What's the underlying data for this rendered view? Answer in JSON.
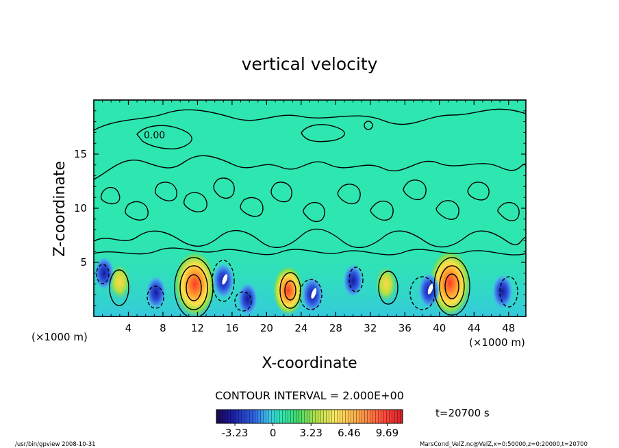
{
  "chart_data": {
    "type": "heatmap",
    "title": "vertical velocity",
    "xlabel": "X-coordinate",
    "ylabel": "Z-coordinate",
    "x_unit": "(×1000 m)",
    "y_unit": "(×1000 m)",
    "xlim": [
      0,
      50
    ],
    "ylim": [
      0,
      20
    ],
    "x_ticks": [
      4,
      8,
      12,
      16,
      20,
      24,
      28,
      32,
      36,
      40,
      44,
      48
    ],
    "y_ticks": [
      5,
      10,
      15
    ],
    "contour_interval_label": "CONTOUR INTERVAL = 2.000E+00",
    "contour_label": "0.00",
    "time_label": "t=20700 s",
    "colorbar": {
      "range": [
        -4.8,
        11
      ],
      "ticks": [
        -3.23,
        0,
        3.23,
        6.46,
        9.69
      ],
      "tick_labels": [
        "-3.23",
        "0",
        "3.23",
        "6.46",
        "9.69"
      ]
    },
    "features": [
      {
        "x": 3.0,
        "z": 3.2,
        "value": 3.5
      },
      {
        "x": 11.7,
        "z": 3.0,
        "value": 10.0
      },
      {
        "x": 22.5,
        "z": 2.4,
        "value": 6.5
      },
      {
        "x": 33.8,
        "z": 3.0,
        "value": 3.5
      },
      {
        "x": 41.2,
        "z": 3.1,
        "value": 10.0
      },
      {
        "x": 1.2,
        "z": 4.0,
        "value": -3.0
      },
      {
        "x": 7.2,
        "z": 2.2,
        "value": -3.0
      },
      {
        "x": 15.0,
        "z": 3.3,
        "value": -3.5
      },
      {
        "x": 17.8,
        "z": 1.6,
        "value": -3.0
      },
      {
        "x": 25.3,
        "z": 2.0,
        "value": -3.5
      },
      {
        "x": 30.0,
        "z": 3.3,
        "value": -3.0
      },
      {
        "x": 38.8,
        "z": 2.4,
        "value": -3.5
      },
      {
        "x": 47.3,
        "z": 2.3,
        "value": -3.3
      }
    ]
  },
  "footer": {
    "left": "/usr/bin/gpview   2008-10-31",
    "right": "MarsCond_VelZ.nc@VelZ,x=0:50000,z=0:20000,t=20700"
  }
}
